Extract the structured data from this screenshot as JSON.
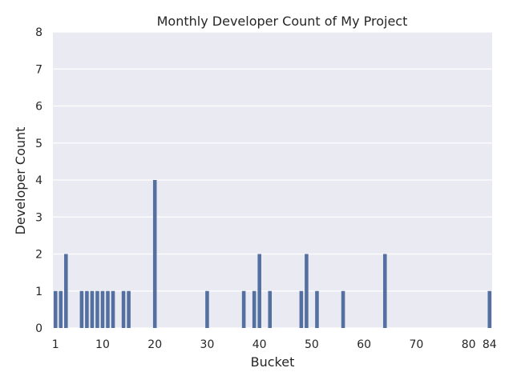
{
  "chart_data": {
    "type": "bar",
    "title": "Monthly Developer Count of My Project",
    "xlabel": "Bucket",
    "ylabel": "Developer Count",
    "xlim": [
      1,
      84
    ],
    "ylim": [
      0,
      8
    ],
    "x_ticks": [
      1,
      10,
      20,
      30,
      40,
      50,
      60,
      70,
      80,
      84
    ],
    "y_ticks": [
      0,
      1,
      2,
      3,
      4,
      5,
      6,
      7,
      8
    ],
    "grid": "horizontal",
    "x": [
      1,
      2,
      3,
      6,
      7,
      8,
      9,
      10,
      11,
      12,
      14,
      15,
      20,
      30,
      37,
      39,
      40,
      42,
      48,
      49,
      51,
      56,
      64,
      84
    ],
    "values": [
      1,
      1,
      2,
      1,
      1,
      1,
      1,
      1,
      1,
      1,
      1,
      1,
      4,
      1,
      1,
      1,
      2,
      1,
      1,
      2,
      1,
      1,
      2,
      1
    ],
    "colors": {
      "bar": "#5470a0",
      "plot_background": "#eaeaf2",
      "grid": "#ffffff",
      "text": "#262626"
    }
  }
}
